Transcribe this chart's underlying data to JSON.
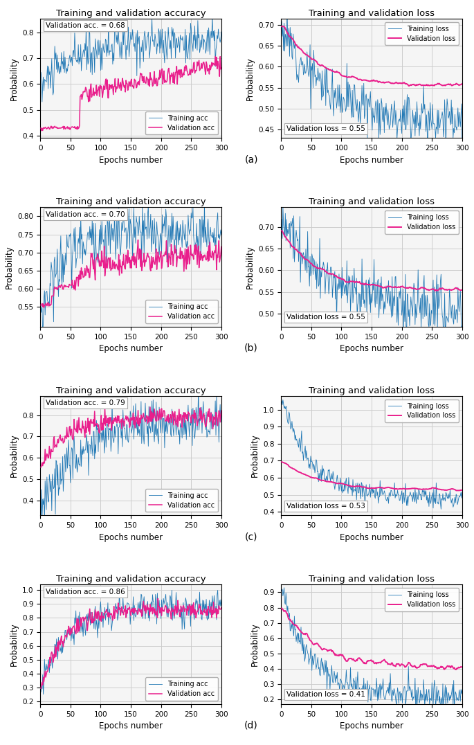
{
  "rows": [
    {
      "label": "(a)",
      "acc": {
        "title": "Training and validation accuracy",
        "val_label": "Validation acc. = 0.68",
        "ylim": [
          0.39,
          0.85
        ],
        "yticks": [
          0.4,
          0.5,
          0.6,
          0.7,
          0.8
        ],
        "legend_loc": "lower right"
      },
      "loss": {
        "title": "Training and validation loss",
        "val_label": "Validation loss = 0.55",
        "ylim": [
          0.43,
          0.72
        ],
        "yticks": [
          0.45,
          0.5,
          0.55,
          0.6,
          0.65,
          0.7
        ],
        "legend_loc": "upper right"
      }
    },
    {
      "label": "(b)",
      "acc": {
        "title": "Training and validation accuracy",
        "val_label": "Validation acc. = 0.70",
        "ylim": [
          0.495,
          0.825
        ],
        "yticks": [
          0.55,
          0.6,
          0.65,
          0.7,
          0.75,
          0.8
        ],
        "legend_loc": "lower right"
      },
      "loss": {
        "title": "Training and validation loss",
        "val_label": "Validation loss = 0.55",
        "ylim": [
          0.47,
          0.745
        ],
        "yticks": [
          0.5,
          0.55,
          0.6,
          0.65,
          0.7
        ],
        "legend_loc": "upper right"
      }
    },
    {
      "label": "(c)",
      "acc": {
        "title": "Training and validation accuracy",
        "val_label": "Validation acc. = 0.79",
        "ylim": [
          0.33,
          0.89
        ],
        "yticks": [
          0.4,
          0.5,
          0.6,
          0.7,
          0.8
        ],
        "legend_loc": "lower right"
      },
      "loss": {
        "title": "Training and validation loss",
        "val_label": "Validation loss = 0.53",
        "ylim": [
          0.38,
          1.08
        ],
        "yticks": [
          0.4,
          0.5,
          0.6,
          0.7,
          0.8,
          0.9,
          1.0
        ],
        "legend_loc": "upper right"
      }
    },
    {
      "label": "(d)",
      "acc": {
        "title": "Training and validation accuracy",
        "val_label": "Validation acc. = 0.86",
        "ylim": [
          0.18,
          1.04
        ],
        "yticks": [
          0.2,
          0.3,
          0.4,
          0.5,
          0.6,
          0.7,
          0.8,
          0.9,
          1.0
        ],
        "legend_loc": "lower right"
      },
      "loss": {
        "title": "Training and validation loss",
        "val_label": "Validation loss = 0.41",
        "ylim": [
          0.17,
          0.95
        ],
        "yticks": [
          0.2,
          0.3,
          0.4,
          0.5,
          0.6,
          0.7,
          0.8,
          0.9
        ],
        "legend_loc": "upper right"
      }
    }
  ],
  "epochs": 300,
  "blue_color": "#1f77b4",
  "pink_color": "#e91e8c",
  "grid_color": "#cccccc",
  "bg_color": "#f5f5f5",
  "xlabel": "Epochs number",
  "ylabel": "Probability",
  "train_acc_label": "Training acc",
  "val_acc_label": "Validation acc",
  "train_loss_label": "Training loss",
  "val_loss_label": "Validation loss"
}
